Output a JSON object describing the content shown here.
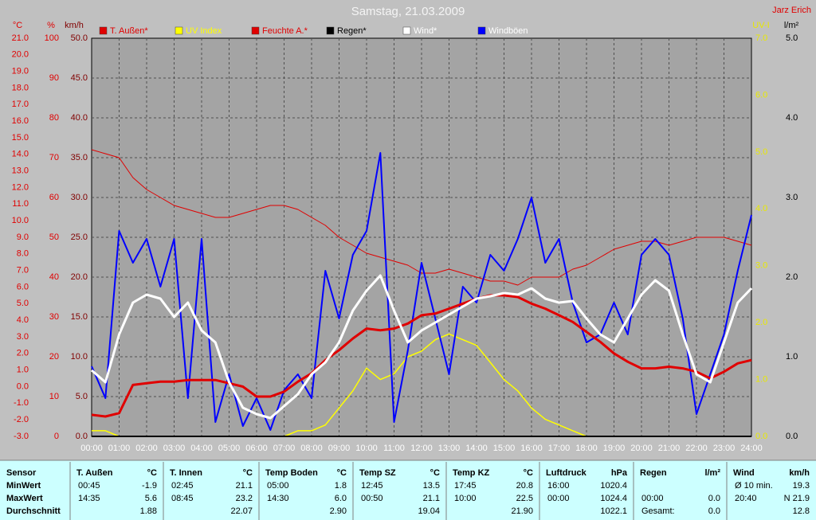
{
  "chart_data": {
    "type": "line",
    "title": "Samstag, 21.03.2009",
    "author": "Jarz Erich",
    "grid": true,
    "xlim": [
      0,
      24
    ],
    "xticks": [
      {
        "value": 0,
        "label": "00:00"
      },
      {
        "value": 1,
        "label": "01:00"
      },
      {
        "value": 2,
        "label": "02:00"
      },
      {
        "value": 3,
        "label": "03:00"
      },
      {
        "value": 4,
        "label": "04:00"
      },
      {
        "value": 5,
        "label": "05:00"
      },
      {
        "value": 6,
        "label": "06:00"
      },
      {
        "value": 7,
        "label": "07:00"
      },
      {
        "value": 8,
        "label": "08:00"
      },
      {
        "value": 9,
        "label": "09:00"
      },
      {
        "value": 10,
        "label": "10:00"
      },
      {
        "value": 11,
        "label": "11:00"
      },
      {
        "value": 12,
        "label": "12:00"
      },
      {
        "value": 13,
        "label": "13:00"
      },
      {
        "value": 14,
        "label": "14:00"
      },
      {
        "value": 15,
        "label": "15:00"
      },
      {
        "value": 16,
        "label": "16:00"
      },
      {
        "value": 17,
        "label": "17:00"
      },
      {
        "value": 18,
        "label": "18:00"
      },
      {
        "value": 19,
        "label": "19:00"
      },
      {
        "value": 20,
        "label": "20:00"
      },
      {
        "value": 21,
        "label": "21:00"
      },
      {
        "value": 22,
        "label": "22:00"
      },
      {
        "value": 23,
        "label": "23:00"
      },
      {
        "value": 24,
        "label": "24:00"
      }
    ],
    "y_axes": [
      {
        "label": "°C",
        "lim": [
          -3,
          21
        ],
        "ticks": [
          {
            "value": -3,
            "label": "-3.0"
          },
          {
            "value": -2,
            "label": "-2.0"
          },
          {
            "value": -1,
            "label": "-1.0"
          },
          {
            "value": 0,
            "label": "0.0"
          },
          {
            "value": 1,
            "label": "1.0"
          },
          {
            "value": 2,
            "label": "2.0"
          },
          {
            "value": 3,
            "label": "3.0"
          },
          {
            "value": 4,
            "label": "4.0"
          },
          {
            "value": 5,
            "label": "5.0"
          },
          {
            "value": 6,
            "label": "6.0"
          },
          {
            "value": 7,
            "label": "7.0"
          },
          {
            "value": 8,
            "label": "8.0"
          },
          {
            "value": 9,
            "label": "9.0"
          },
          {
            "value": 10,
            "label": "10.0"
          },
          {
            "value": 11,
            "label": "11.0"
          },
          {
            "value": 12,
            "label": "12.0"
          },
          {
            "value": 13,
            "label": "13.0"
          },
          {
            "value": 14,
            "label": "14.0"
          },
          {
            "value": 15,
            "label": "15.0"
          },
          {
            "value": 16,
            "label": "16.0"
          },
          {
            "value": 17,
            "label": "17.0"
          },
          {
            "value": 18,
            "label": "18.0"
          },
          {
            "value": 19,
            "label": "19.0"
          },
          {
            "value": 20,
            "label": "20.0"
          },
          {
            "value": 21,
            "label": "21.0"
          }
        ]
      },
      {
        "label": "%",
        "lim": [
          0,
          100
        ],
        "ticks": [
          0,
          10,
          20,
          30,
          40,
          50,
          60,
          70,
          80,
          90,
          100
        ]
      },
      {
        "label": "km/h",
        "lim": [
          0,
          50
        ],
        "ticks": [
          {
            "value": 0,
            "label": "0.0"
          },
          {
            "value": 5,
            "label": "5.0"
          },
          {
            "value": 10,
            "label": "10.0"
          },
          {
            "value": 15,
            "label": "15.0"
          },
          {
            "value": 20,
            "label": "20.0"
          },
          {
            "value": 25,
            "label": "25.0"
          },
          {
            "value": 30,
            "label": "30.0"
          },
          {
            "value": 35,
            "label": "35.0"
          },
          {
            "value": 40,
            "label": "40.0"
          },
          {
            "value": 45,
            "label": "45.0"
          },
          {
            "value": 50,
            "label": "50.0"
          }
        ]
      },
      {
        "label": "UV-I",
        "lim": [
          0,
          7
        ],
        "ticks": [
          {
            "value": 0,
            "label": "0.0"
          },
          {
            "value": 1,
            "label": "1.0"
          },
          {
            "value": 2,
            "label": "2.0"
          },
          {
            "value": 3,
            "label": "3.0"
          },
          {
            "value": 4,
            "label": "4.0"
          },
          {
            "value": 5,
            "label": "5.0"
          },
          {
            "value": 6,
            "label": "6.0"
          },
          {
            "value": 7,
            "label": "7.0"
          }
        ]
      },
      {
        "label": "l/m²",
        "lim": [
          0,
          5
        ],
        "ticks": [
          {
            "value": 0,
            "label": "0.0"
          },
          {
            "value": 1,
            "label": "1.0"
          },
          {
            "value": 2,
            "label": "2.0"
          },
          {
            "value": 3,
            "label": "3.0"
          },
          {
            "value": 4,
            "label": "4.0"
          },
          {
            "value": 5,
            "label": "5.0"
          }
        ]
      }
    ],
    "x": [
      0,
      0.5,
      1,
      1.5,
      2,
      2.5,
      3,
      3.5,
      4,
      4.5,
      5,
      5.5,
      6,
      6.5,
      7,
      7.5,
      8,
      8.5,
      9,
      9.5,
      10,
      10.5,
      11,
      11.5,
      12,
      12.5,
      13,
      13.5,
      14,
      14.5,
      15,
      15.5,
      16,
      16.5,
      17,
      17.5,
      18,
      18.5,
      19,
      19.5,
      20,
      20.5,
      21,
      21.5,
      22,
      22.5,
      23,
      23.5,
      24
    ],
    "series": [
      {
        "name": "T. Außen*",
        "color": "#e00000",
        "axis": 0,
        "values": [
          -1.7,
          -1.8,
          -1.6,
          0.1,
          0.2,
          0.3,
          0.3,
          0.4,
          0.4,
          0.4,
          0.2,
          0,
          -0.6,
          -0.6,
          -0.3,
          0.3,
          0.8,
          1.6,
          2.2,
          2.9,
          3.5,
          3.4,
          3.5,
          3.8,
          4.3,
          4.4,
          4.7,
          5,
          5.3,
          5.5,
          5.5,
          5.4,
          5,
          4.7,
          4.3,
          3.9,
          3.3,
          2.7,
          2,
          1.5,
          1.1,
          1.1,
          1.2,
          1.1,
          0.9,
          0.5,
          0.9,
          1.4,
          1.6
        ]
      },
      {
        "name": "UV Index",
        "color": "#ffff00",
        "axis": 3,
        "values": [
          0.1,
          0.1,
          0,
          0,
          0,
          0,
          0,
          0,
          0,
          0,
          0,
          0,
          0,
          0,
          0,
          0.1,
          0.1,
          0.2,
          0.5,
          0.8,
          1.2,
          1,
          1.1,
          1.4,
          1.5,
          1.7,
          1.8,
          1.7,
          1.6,
          1.3,
          1,
          0.8,
          0.5,
          0.3,
          0.2,
          0.1,
          0,
          0,
          0,
          0,
          0,
          0,
          0,
          0,
          0,
          0,
          0,
          0,
          0
        ]
      },
      {
        "name": "Feuchte A.*",
        "color": "#e00000",
        "axis": 1,
        "values": [
          72,
          71,
          70,
          65,
          62,
          60,
          58,
          57,
          56,
          55,
          55,
          56,
          57,
          58,
          58,
          57,
          55,
          53,
          50,
          48,
          46,
          45,
          44,
          43,
          41,
          41,
          42,
          41,
          40,
          39,
          39,
          38,
          40,
          40,
          40,
          42,
          43,
          45,
          47,
          48,
          49,
          49,
          48,
          49,
          50,
          50,
          50,
          49,
          48
        ]
      },
      {
        "name": "Regen*",
        "color": "#000000",
        "axis": 4,
        "values": [
          0,
          0,
          0,
          0,
          0,
          0,
          0,
          0,
          0,
          0,
          0,
          0,
          0,
          0,
          0,
          0,
          0,
          0,
          0,
          0,
          0,
          0,
          0,
          0,
          0,
          0,
          0,
          0,
          0,
          0,
          0,
          0,
          0,
          0,
          0,
          0,
          0,
          0,
          0,
          0,
          0,
          0,
          0,
          0,
          0,
          0,
          0,
          0,
          0
        ]
      },
      {
        "name": "Wind*",
        "color": "#ffffff",
        "axis": 2,
        "values": [
          8.3,
          6.8,
          12.8,
          16.8,
          17.8,
          17.3,
          15,
          16.8,
          13.3,
          11.8,
          6.8,
          3.6,
          2.8,
          2.3,
          3.8,
          5.3,
          7.8,
          9.3,
          11.8,
          15.8,
          18.3,
          20.2,
          15.8,
          11.8,
          13.3,
          14.3,
          15.3,
          16.3,
          17.3,
          17.6,
          18,
          17.8,
          18.6,
          17.3,
          16.8,
          17,
          14.8,
          12.8,
          11.8,
          14.8,
          17.8,
          19.6,
          18.3,
          12.8,
          7.8,
          6.8,
          11.8,
          16.8,
          18.6
        ]
      },
      {
        "name": "Windböen",
        "color": "#0000ff",
        "axis": 2,
        "values": [
          8.8,
          4.8,
          25.8,
          21.8,
          24.8,
          18.8,
          24.8,
          4.8,
          24.8,
          1.8,
          7.8,
          1.3,
          4.8,
          0.8,
          5.8,
          7.8,
          4.8,
          20.8,
          14.8,
          22.8,
          25.8,
          35.6,
          1.8,
          10.8,
          21.8,
          14.8,
          7.8,
          18.8,
          16.8,
          22.8,
          20.8,
          24.8,
          30,
          21.8,
          24.8,
          16.8,
          11.8,
          12.8,
          16.8,
          12.8,
          22.8,
          24.8,
          22.8,
          14.8,
          2.8,
          7.8,
          12.8,
          20.8,
          27.8
        ]
      }
    ]
  },
  "table": {
    "header": "Sensor",
    "row_labels": [
      "MinWert",
      "MaxWert",
      "Durchschnitt"
    ],
    "columns": [
      {
        "name": "T. Außen",
        "unit": "°C",
        "cells": [
          [
            "00:45",
            "-1.9"
          ],
          [
            "14:35",
            "5.6"
          ],
          [
            null,
            "1.88"
          ]
        ]
      },
      {
        "name": "T. Innen",
        "unit": "°C",
        "cells": [
          [
            "02:45",
            "21.1"
          ],
          [
            "08:45",
            "23.2"
          ],
          [
            null,
            "22.07"
          ]
        ]
      },
      {
        "name": "Temp Boden",
        "unit": "°C",
        "cells": [
          [
            "05:00",
            "1.8"
          ],
          [
            "14:30",
            "6.0"
          ],
          [
            null,
            "2.90"
          ]
        ]
      },
      {
        "name": "Temp SZ",
        "unit": "°C",
        "cells": [
          [
            "12:45",
            "13.5"
          ],
          [
            "00:50",
            "21.1"
          ],
          [
            null,
            "19.04"
          ]
        ]
      },
      {
        "name": "Temp KZ",
        "unit": "°C",
        "cells": [
          [
            "17:45",
            "20.8"
          ],
          [
            "10:00",
            "22.5"
          ],
          [
            null,
            "21.90"
          ]
        ]
      },
      {
        "name": "Luftdruck",
        "unit": "hPa",
        "cells": [
          [
            "16:00",
            "1020.4"
          ],
          [
            "00:00",
            "1024.4"
          ],
          [
            null,
            "1022.1"
          ]
        ]
      },
      {
        "name": "Regen",
        "unit": "l/m²",
        "cells": [
          [
            null,
            null
          ],
          [
            "00:00",
            "0.0"
          ],
          [
            "Gesamt:",
            "0.0"
          ]
        ]
      },
      {
        "name": "Wind",
        "unit": "km/h",
        "cells": [
          [
            "Ø 10 min.",
            "19.3"
          ],
          [
            "20:40",
            "N 21.9"
          ],
          [
            null,
            "12.8"
          ]
        ]
      }
    ]
  }
}
